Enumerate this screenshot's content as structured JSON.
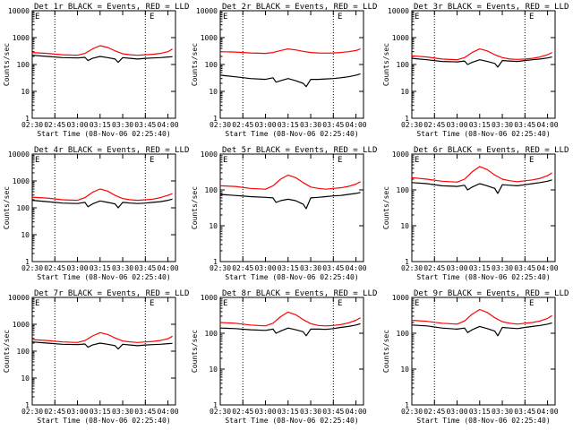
{
  "figure": {
    "shared": {
      "xlabel": "Start Time (08-Nov-06 02:25:40)",
      "ylabel": "Counts/sec",
      "x_ticks": [
        "02:30",
        "02:45",
        "03:00",
        "03:15",
        "03:30",
        "03:45",
        "04:00"
      ],
      "y_ticks": [
        "1",
        "10",
        "100",
        "1000",
        "10000"
      ],
      "corner_mark_left": "E",
      "corner_mark_right": "E"
    },
    "colors": {
      "events": "#000000",
      "lld": "#ff0000",
      "axes": "#000000",
      "background": "#ffffff"
    }
  },
  "chart_data": [
    {
      "type": "line",
      "title": "Det 1r BLACK = Events, RED = LLD",
      "xlabel": "Start Time (08-Nov-06 02:25:40)",
      "ylabel": "Counts/sec",
      "x_range": [
        "02:30",
        "04:05"
      ],
      "y_scale": "log",
      "ylim": [
        1,
        10000
      ],
      "grid": false,
      "vertical_markers": [
        "02:45",
        "03:45"
      ],
      "series": [
        {
          "name": "Events",
          "color": "#000000",
          "x": [
            "02:30",
            "02:40",
            "02:50",
            "03:00",
            "03:05",
            "03:07",
            "03:10",
            "03:15",
            "03:20",
            "03:25",
            "03:27",
            "03:30",
            "03:35",
            "03:40",
            "03:45",
            "03:50",
            "03:55",
            "04:00",
            "04:03"
          ],
          "values": [
            220,
            200,
            180,
            175,
            185,
            140,
            170,
            200,
            180,
            160,
            120,
            180,
            170,
            160,
            170,
            175,
            180,
            190,
            195
          ]
        },
        {
          "name": "LLD",
          "color": "#ff0000",
          "x": [
            "02:30",
            "02:40",
            "02:50",
            "03:00",
            "03:05",
            "03:10",
            "03:15",
            "03:20",
            "03:25",
            "03:30",
            "03:35",
            "03:40",
            "03:45",
            "03:50",
            "03:55",
            "04:00",
            "04:03"
          ],
          "values": [
            280,
            260,
            230,
            220,
            260,
            380,
            500,
            430,
            320,
            250,
            230,
            220,
            230,
            240,
            260,
            300,
            380
          ]
        }
      ]
    },
    {
      "type": "line",
      "title": "Det 2r BLACK = Events, RED = LLD",
      "xlabel": "Start Time (08-Nov-06 02:25:40)",
      "ylabel": "Counts/sec",
      "x_range": [
        "02:30",
        "04:05"
      ],
      "y_scale": "log",
      "ylim": [
        1,
        10000
      ],
      "grid": false,
      "vertical_markers": [
        "02:45",
        "03:45"
      ],
      "series": [
        {
          "name": "Events",
          "color": "#000000",
          "x": [
            "02:30",
            "02:40",
            "02:50",
            "03:00",
            "03:05",
            "03:07",
            "03:10",
            "03:15",
            "03:20",
            "03:25",
            "03:27",
            "03:30",
            "03:35",
            "03:40",
            "03:45",
            "03:50",
            "03:55",
            "04:00",
            "04:03"
          ],
          "values": [
            40,
            35,
            30,
            28,
            32,
            22,
            25,
            30,
            25,
            20,
            15,
            28,
            28,
            29,
            30,
            32,
            35,
            40,
            45
          ]
        },
        {
          "name": "LLD",
          "color": "#ff0000",
          "x": [
            "02:30",
            "02:40",
            "02:50",
            "03:00",
            "03:05",
            "03:10",
            "03:15",
            "03:20",
            "03:25",
            "03:30",
            "03:35",
            "03:40",
            "03:45",
            "03:50",
            "03:55",
            "04:00",
            "04:03"
          ],
          "values": [
            300,
            290,
            270,
            260,
            280,
            330,
            380,
            350,
            310,
            280,
            270,
            265,
            270,
            280,
            300,
            330,
            380
          ]
        }
      ]
    },
    {
      "type": "line",
      "title": "Det 3r BLACK = Events, RED = LLD",
      "xlabel": "Start Time (08-Nov-06 02:25:40)",
      "ylabel": "Counts/sec",
      "x_range": [
        "02:30",
        "04:05"
      ],
      "y_scale": "log",
      "ylim": [
        1,
        10000
      ],
      "grid": false,
      "vertical_markers": [
        "02:45",
        "03:45"
      ],
      "series": [
        {
          "name": "Events",
          "color": "#000000",
          "x": [
            "02:30",
            "02:40",
            "02:50",
            "03:00",
            "03:05",
            "03:07",
            "03:10",
            "03:15",
            "03:20",
            "03:25",
            "03:27",
            "03:30",
            "03:35",
            "03:40",
            "03:45",
            "03:50",
            "03:55",
            "04:00",
            "04:03"
          ],
          "values": [
            170,
            150,
            130,
            125,
            135,
            100,
            120,
            150,
            130,
            110,
            80,
            140,
            135,
            130,
            140,
            150,
            160,
            175,
            190
          ]
        },
        {
          "name": "LLD",
          "color": "#ff0000",
          "x": [
            "02:30",
            "02:40",
            "02:50",
            "03:00",
            "03:05",
            "03:10",
            "03:15",
            "03:20",
            "03:25",
            "03:30",
            "03:35",
            "03:40",
            "03:45",
            "03:50",
            "03:55",
            "04:00",
            "04:03"
          ],
          "values": [
            210,
            190,
            160,
            150,
            180,
            280,
            380,
            320,
            230,
            180,
            160,
            155,
            160,
            170,
            190,
            230,
            280
          ]
        }
      ]
    },
    {
      "type": "line",
      "title": "Det 4r BLACK = Events, RED = LLD",
      "xlabel": "Start Time (08-Nov-06 02:25:40)",
      "ylabel": "Counts/sec",
      "x_range": [
        "02:30",
        "04:05"
      ],
      "y_scale": "log",
      "ylim": [
        1,
        10000
      ],
      "grid": false,
      "vertical_markers": [
        "02:45",
        "03:45"
      ],
      "series": [
        {
          "name": "Events",
          "color": "#000000",
          "x": [
            "02:30",
            "02:40",
            "02:50",
            "03:00",
            "03:05",
            "03:07",
            "03:10",
            "03:15",
            "03:20",
            "03:25",
            "03:27",
            "03:30",
            "03:35",
            "03:40",
            "03:45",
            "03:50",
            "03:55",
            "04:00",
            "04:03"
          ],
          "values": [
            190,
            170,
            150,
            145,
            160,
            110,
            140,
            180,
            160,
            140,
            100,
            160,
            150,
            145,
            150,
            160,
            170,
            190,
            210
          ]
        },
        {
          "name": "LLD",
          "color": "#ff0000",
          "x": [
            "02:30",
            "02:40",
            "02:50",
            "03:00",
            "03:05",
            "03:10",
            "03:15",
            "03:20",
            "03:25",
            "03:30",
            "03:35",
            "03:40",
            "03:45",
            "03:50",
            "03:55",
            "04:00",
            "04:03"
          ],
          "values": [
            250,
            230,
            200,
            190,
            240,
            380,
            500,
            420,
            290,
            220,
            200,
            190,
            200,
            210,
            240,
            290,
            340
          ]
        }
      ]
    },
    {
      "type": "line",
      "title": "Det 5r BLACK = Events, RED = LLD",
      "xlabel": "Start Time (08-Nov-06 02:25:40)",
      "ylabel": "Counts/sec",
      "x_range": [
        "02:30",
        "04:05"
      ],
      "y_scale": "log",
      "ylim": [
        1,
        1000
      ],
      "grid": false,
      "vertical_markers": [
        "02:45",
        "03:45"
      ],
      "series": [
        {
          "name": "Events",
          "color": "#000000",
          "x": [
            "02:30",
            "02:40",
            "02:50",
            "03:00",
            "03:05",
            "03:07",
            "03:10",
            "03:15",
            "03:20",
            "03:25",
            "03:27",
            "03:30",
            "03:35",
            "03:40",
            "03:45",
            "03:50",
            "03:55",
            "04:00",
            "04:03"
          ],
          "values": [
            75,
            70,
            65,
            62,
            60,
            45,
            50,
            55,
            50,
            40,
            30,
            60,
            62,
            65,
            68,
            70,
            75,
            80,
            85
          ]
        },
        {
          "name": "LLD",
          "color": "#ff0000",
          "x": [
            "02:30",
            "02:40",
            "02:50",
            "03:00",
            "03:05",
            "03:10",
            "03:15",
            "03:20",
            "03:25",
            "03:30",
            "03:35",
            "03:40",
            "03:45",
            "03:50",
            "03:55",
            "04:00",
            "04:03"
          ],
          "values": [
            130,
            125,
            110,
            105,
            130,
            200,
            260,
            220,
            160,
            120,
            110,
            105,
            110,
            115,
            125,
            145,
            170
          ]
        }
      ]
    },
    {
      "type": "line",
      "title": "Det 6r BLACK = Events, RED = LLD",
      "xlabel": "Start Time (08-Nov-06 02:25:40)",
      "ylabel": "Counts/sec",
      "x_range": [
        "02:30",
        "04:05"
      ],
      "y_scale": "log",
      "ylim": [
        1,
        1000
      ],
      "grid": false,
      "vertical_markers": [
        "02:45",
        "03:45"
      ],
      "series": [
        {
          "name": "Events",
          "color": "#000000",
          "x": [
            "02:30",
            "02:40",
            "02:50",
            "03:00",
            "03:05",
            "03:07",
            "03:10",
            "03:15",
            "03:20",
            "03:25",
            "03:27",
            "03:30",
            "03:35",
            "03:40",
            "03:45",
            "03:50",
            "03:55",
            "04:00",
            "04:03"
          ],
          "values": [
            160,
            150,
            130,
            125,
            135,
            100,
            120,
            150,
            130,
            110,
            80,
            140,
            135,
            130,
            140,
            150,
            160,
            175,
            190
          ]
        },
        {
          "name": "LLD",
          "color": "#ff0000",
          "x": [
            "02:30",
            "02:40",
            "02:50",
            "03:00",
            "03:05",
            "03:10",
            "03:15",
            "03:20",
            "03:25",
            "03:30",
            "03:35",
            "03:40",
            "03:45",
            "03:50",
            "03:55",
            "04:00",
            "04:03"
          ],
          "values": [
            220,
            200,
            175,
            165,
            200,
            320,
            450,
            370,
            260,
            200,
            180,
            170,
            180,
            190,
            210,
            250,
            300
          ]
        }
      ]
    },
    {
      "type": "line",
      "title": "Det 7r BLACK = Events, RED = LLD",
      "xlabel": "Start Time (08-Nov-06 02:25:40)",
      "ylabel": "Counts/sec",
      "x_range": [
        "02:30",
        "04:05"
      ],
      "y_scale": "log",
      "ylim": [
        1,
        10000
      ],
      "grid": false,
      "vertical_markers": [
        "02:45",
        "03:45"
      ],
      "series": [
        {
          "name": "Events",
          "color": "#000000",
          "x": [
            "02:30",
            "02:40",
            "02:50",
            "03:00",
            "03:05",
            "03:07",
            "03:10",
            "03:15",
            "03:20",
            "03:25",
            "03:27",
            "03:30",
            "03:35",
            "03:40",
            "03:45",
            "03:50",
            "03:55",
            "04:00",
            "04:03"
          ],
          "values": [
            220,
            200,
            180,
            175,
            185,
            140,
            170,
            200,
            180,
            160,
            120,
            180,
            170,
            160,
            170,
            175,
            180,
            190,
            195
          ]
        },
        {
          "name": "LLD",
          "color": "#ff0000",
          "x": [
            "02:30",
            "02:40",
            "02:50",
            "03:00",
            "03:05",
            "03:10",
            "03:15",
            "03:20",
            "03:25",
            "03:30",
            "03:35",
            "03:40",
            "03:45",
            "03:50",
            "03:55",
            "04:00",
            "04:03"
          ],
          "values": [
            270,
            250,
            220,
            210,
            250,
            370,
            490,
            420,
            310,
            240,
            220,
            210,
            220,
            230,
            250,
            290,
            360
          ]
        }
      ]
    },
    {
      "type": "line",
      "title": "Det 8r BLACK = Events, RED = LLD",
      "xlabel": "Start Time (08-Nov-06 02:25:40)",
      "ylabel": "Counts/sec",
      "x_range": [
        "02:30",
        "04:05"
      ],
      "y_scale": "log",
      "ylim": [
        1,
        1000
      ],
      "grid": false,
      "vertical_markers": [
        "02:45",
        "03:45"
      ],
      "series": [
        {
          "name": "Events",
          "color": "#000000",
          "x": [
            "02:30",
            "02:40",
            "02:50",
            "03:00",
            "03:05",
            "03:07",
            "03:10",
            "03:15",
            "03:20",
            "03:25",
            "03:27",
            "03:30",
            "03:35",
            "03:40",
            "03:45",
            "03:50",
            "03:55",
            "04:00",
            "04:03"
          ],
          "values": [
            140,
            135,
            125,
            120,
            130,
            100,
            115,
            140,
            125,
            110,
            85,
            130,
            130,
            128,
            135,
            145,
            155,
            170,
            185
          ]
        },
        {
          "name": "LLD",
          "color": "#ff0000",
          "x": [
            "02:30",
            "02:40",
            "02:50",
            "03:00",
            "03:05",
            "03:10",
            "03:15",
            "03:20",
            "03:25",
            "03:30",
            "03:35",
            "03:40",
            "03:45",
            "03:50",
            "03:55",
            "04:00",
            "04:03"
          ],
          "values": [
            200,
            190,
            170,
            160,
            190,
            290,
            390,
            330,
            240,
            185,
            165,
            160,
            165,
            175,
            195,
            230,
            270
          ]
        }
      ]
    },
    {
      "type": "line",
      "title": "Det 9r BLACK = Events, RED = LLD",
      "xlabel": "Start Time (08-Nov-06 02:25:40)",
      "ylabel": "Counts/sec",
      "x_range": [
        "02:30",
        "04:05"
      ],
      "y_scale": "log",
      "ylim": [
        1,
        1000
      ],
      "grid": false,
      "vertical_markers": [
        "02:45",
        "03:45"
      ],
      "series": [
        {
          "name": "Events",
          "color": "#000000",
          "x": [
            "02:30",
            "02:40",
            "02:50",
            "03:00",
            "03:05",
            "03:07",
            "03:10",
            "03:15",
            "03:20",
            "03:25",
            "03:27",
            "03:30",
            "03:35",
            "03:40",
            "03:45",
            "03:50",
            "03:55",
            "04:00",
            "04:03"
          ],
          "values": [
            170,
            160,
            140,
            130,
            140,
            105,
            125,
            155,
            135,
            115,
            85,
            145,
            140,
            135,
            145,
            155,
            165,
            180,
            195
          ]
        },
        {
          "name": "LLD",
          "color": "#ff0000",
          "x": [
            "02:30",
            "02:40",
            "02:50",
            "03:00",
            "03:05",
            "03:10",
            "03:15",
            "03:20",
            "03:25",
            "03:30",
            "03:35",
            "03:40",
            "03:45",
            "03:50",
            "03:55",
            "04:00",
            "04:03"
          ],
          "values": [
            230,
            215,
            190,
            180,
            220,
            340,
            460,
            380,
            270,
            210,
            190,
            180,
            190,
            200,
            220,
            260,
            310
          ]
        }
      ]
    }
  ]
}
